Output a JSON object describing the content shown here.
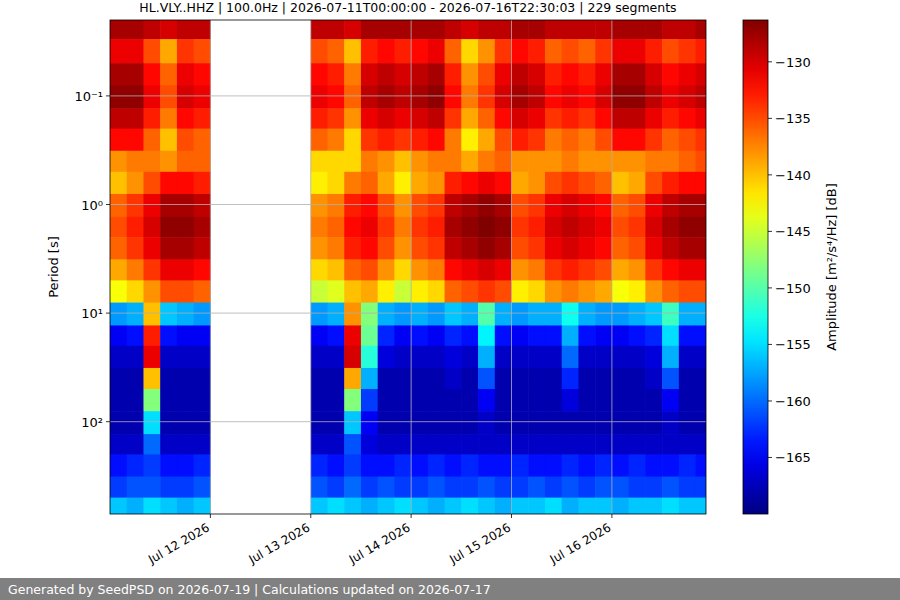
{
  "chart_data": {
    "type": "heatmap",
    "title": "HL.VLY..HHZ | 100.0Hz | 2026-07-11T00:00:00 - 2026-07-16T22:30:03 | 229 segments",
    "footer": "Generated by SeedPSD on 2026-07-19 | Calculations updated on 2026-07-17",
    "ylabel": "Period [s]",
    "log": "y",
    "grid": true,
    "xlim": [
      "2026-07-11T00:00:00",
      "2026-07-16T22:30:03"
    ],
    "xticks": [
      {
        "value": "2026-07-12T00:00:00",
        "label": "Jul 12 2026"
      },
      {
        "value": "2026-07-13T00:00:00",
        "label": "Jul 13 2026"
      },
      {
        "value": "2026-07-14T00:00:00",
        "label": "Jul 14 2026"
      },
      {
        "value": "2026-07-15T00:00:00",
        "label": "Jul 15 2026"
      },
      {
        "value": "2026-07-16T00:00:00",
        "label": "Jul 16 2026"
      }
    ],
    "ylim": [
      0.02,
      708
    ],
    "yticks": [
      {
        "value": 0.1,
        "label": "10⁻¹"
      },
      {
        "value": 1,
        "label": "10⁰"
      },
      {
        "value": 10,
        "label": "10¹"
      },
      {
        "value": 100,
        "label": "10²"
      }
    ],
    "x_bins": [
      "2026-07-11T00:00:00",
      "2026-07-11T04:00:00",
      "2026-07-11T08:00:00",
      "2026-07-11T12:00:00",
      "2026-07-11T16:00:00",
      "2026-07-11T20:00:00",
      "2026-07-12T00:00:00",
      "2026-07-12T04:00:00",
      "2026-07-12T08:00:00",
      "2026-07-12T12:00:00",
      "2026-07-12T16:00:00",
      "2026-07-12T20:00:00",
      "2026-07-13T00:00:00",
      "2026-07-13T04:00:00",
      "2026-07-13T08:00:00",
      "2026-07-13T12:00:00",
      "2026-07-13T16:00:00",
      "2026-07-13T20:00:00",
      "2026-07-14T00:00:00",
      "2026-07-14T04:00:00",
      "2026-07-14T08:00:00",
      "2026-07-14T12:00:00",
      "2026-07-14T16:00:00",
      "2026-07-14T20:00:00",
      "2026-07-15T00:00:00",
      "2026-07-15T04:00:00",
      "2026-07-15T08:00:00",
      "2026-07-15T12:00:00",
      "2026-07-15T16:00:00",
      "2026-07-15T20:00:00",
      "2026-07-16T00:00:00",
      "2026-07-16T04:00:00",
      "2026-07-16T08:00:00",
      "2026-07-16T12:00:00",
      "2026-07-16T16:00:00",
      "2026-07-16T20:00:00",
      "2026-07-17T00:00:00"
    ],
    "y_bins": [
      0.02,
      0.03,
      0.05,
      0.08,
      0.13,
      0.2,
      0.32,
      0.5,
      0.8,
      1.3,
      2,
      3.2,
      5,
      8,
      13,
      20,
      32,
      50,
      80,
      130,
      200,
      320,
      500,
      708
    ],
    "cells": [
      [
        -128,
        -128,
        -129,
        -130,
        -129,
        -129,
        null,
        null,
        null,
        null,
        null,
        null,
        -129,
        -129,
        -130,
        -128,
        -128,
        -128,
        -128,
        -128,
        -129,
        -130,
        -129,
        -129,
        -128,
        -128,
        -129,
        -129,
        -129,
        -129,
        -128,
        -128,
        -128,
        -129,
        -129,
        -128
      ],
      [
        -131,
        -131,
        -135,
        -139,
        -134,
        -135,
        null,
        null,
        null,
        null,
        null,
        null,
        -135,
        -136,
        -140,
        -133,
        -132,
        -133,
        -132,
        -131,
        -136,
        -141,
        -138,
        -134,
        -132,
        -133,
        -136,
        -135,
        -136,
        -134,
        -131,
        -131,
        -133,
        -135,
        -134,
        -133
      ],
      [
        -128,
        -128,
        -132,
        -136,
        -131,
        -132,
        null,
        null,
        null,
        null,
        null,
        null,
        -132,
        -133,
        -137,
        -130,
        -129,
        -130,
        -129,
        -128,
        -133,
        -138,
        -135,
        -131,
        -129,
        -130,
        -133,
        -132,
        -133,
        -131,
        -128,
        -128,
        -130,
        -132,
        -131,
        -130
      ],
      [
        -127,
        -127,
        -131,
        -135,
        -130,
        -131,
        null,
        null,
        null,
        null,
        null,
        null,
        -131,
        -132,
        -136,
        -129,
        -128,
        -129,
        -128,
        -127,
        -132,
        -137,
        -134,
        -130,
        -128,
        -129,
        -132,
        -131,
        -132,
        -130,
        -127,
        -127,
        -129,
        -131,
        -130,
        -129
      ],
      [
        -129,
        -129,
        -133,
        -137,
        -132,
        -133,
        null,
        null,
        null,
        null,
        null,
        null,
        -133,
        -134,
        -138,
        -131,
        -130,
        -131,
        -130,
        -129,
        -134,
        -139,
        -136,
        -132,
        -130,
        -131,
        -134,
        -133,
        -134,
        -132,
        -129,
        -129,
        -131,
        -133,
        -132,
        -131
      ],
      [
        -132,
        -132,
        -136,
        -140,
        -135,
        -136,
        null,
        null,
        null,
        null,
        null,
        null,
        -136,
        -137,
        -141,
        -134,
        -133,
        -134,
        -133,
        -132,
        -137,
        -142,
        -139,
        -135,
        -133,
        -134,
        -137,
        -136,
        -137,
        -135,
        -132,
        -132,
        -134,
        -136,
        -135,
        -134
      ],
      [
        -138,
        -137,
        -137,
        -138,
        -136,
        -136,
        null,
        null,
        null,
        null,
        null,
        null,
        -141,
        -141,
        -141,
        -137,
        -138,
        -140,
        -138,
        -137,
        -137,
        -139,
        -137,
        -136,
        -138,
        -138,
        -138,
        -137,
        -138,
        -138,
        -138,
        -138,
        -137,
        -137,
        -136,
        -135
      ],
      [
        -140,
        -138,
        -135,
        -132,
        -132,
        -133,
        null,
        null,
        null,
        null,
        null,
        null,
        -142,
        -141,
        -137,
        -136,
        -139,
        -142,
        -139,
        -138,
        -133,
        -132,
        -131,
        -132,
        -139,
        -138,
        -135,
        -134,
        -135,
        -136,
        -140,
        -139,
        -135,
        -133,
        -132,
        -132
      ],
      [
        -136,
        -134,
        -131,
        -128,
        -128,
        -129,
        null,
        null,
        null,
        null,
        null,
        null,
        -138,
        -137,
        -133,
        -132,
        -135,
        -138,
        -135,
        -134,
        -129,
        -128,
        -127,
        -128,
        -135,
        -134,
        -131,
        -130,
        -131,
        -132,
        -136,
        -135,
        -131,
        -129,
        -128,
        -128
      ],
      [
        -135,
        -133,
        -130,
        -127,
        -127,
        -128,
        null,
        null,
        null,
        null,
        null,
        null,
        -137,
        -136,
        -132,
        -131,
        -134,
        -137,
        -134,
        -133,
        -128,
        -127,
        -126,
        -127,
        -134,
        -133,
        -130,
        -129,
        -130,
        -131,
        -135,
        -134,
        -130,
        -128,
        -127,
        -127
      ],
      [
        -136,
        -134,
        -131,
        -128,
        -128,
        -129,
        null,
        null,
        null,
        null,
        null,
        null,
        -138,
        -137,
        -133,
        -132,
        -135,
        -138,
        -135,
        -134,
        -129,
        -128,
        -127,
        -128,
        -135,
        -134,
        -131,
        -130,
        -131,
        -132,
        -136,
        -135,
        -131,
        -129,
        -128,
        -128
      ],
      [
        -139,
        -137,
        -134,
        -131,
        -131,
        -132,
        null,
        null,
        null,
        null,
        null,
        null,
        -141,
        -140,
        -136,
        -135,
        -138,
        -141,
        -138,
        -137,
        -132,
        -131,
        -130,
        -131,
        -138,
        -137,
        -134,
        -133,
        -134,
        -135,
        -139,
        -138,
        -134,
        -132,
        -131,
        -131
      ],
      [
        -143,
        -141,
        -138,
        -135,
        -135,
        -136,
        null,
        null,
        null,
        null,
        null,
        null,
        -145,
        -144,
        -140,
        -139,
        -142,
        -145,
        -142,
        -141,
        -136,
        -135,
        -134,
        -135,
        -142,
        -141,
        -138,
        -137,
        -138,
        -139,
        -143,
        -142,
        -138,
        -136,
        -135,
        -135
      ],
      [
        -158,
        -157,
        -140,
        -156,
        -157,
        -158,
        null,
        null,
        null,
        null,
        null,
        null,
        -158,
        -157,
        -138,
        -148,
        -157,
        -158,
        -157,
        -158,
        -156,
        -157,
        -150,
        -157,
        -158,
        -157,
        -157,
        -153,
        -157,
        -158,
        -158,
        -157,
        -156,
        -151,
        -157,
        -157
      ],
      [
        -165,
        -164,
        -133,
        -164,
        -165,
        -165,
        null,
        null,
        null,
        null,
        null,
        null,
        -165,
        -164,
        -131,
        -149,
        -163,
        -165,
        -164,
        -165,
        -163,
        -164,
        -154,
        -164,
        -165,
        -164,
        -164,
        -157,
        -164,
        -165,
        -165,
        -164,
        -163,
        -155,
        -164,
        -164
      ],
      [
        -167,
        -167,
        -131,
        -167,
        -167,
        -167,
        null,
        null,
        null,
        null,
        null,
        null,
        -167,
        -167,
        -130,
        -152,
        -166,
        -167,
        -167,
        -167,
        -166,
        -167,
        -157,
        -167,
        -167,
        -167,
        -167,
        -160,
        -167,
        -167,
        -167,
        -167,
        -166,
        -157,
        -167,
        -167
      ],
      [
        -168,
        -168,
        -140,
        -168,
        -168,
        -168,
        null,
        null,
        null,
        null,
        null,
        null,
        -168,
        -168,
        -139,
        -157,
        -168,
        -168,
        -168,
        -168,
        -167,
        -168,
        -161,
        -168,
        -168,
        -168,
        -168,
        -163,
        -168,
        -168,
        -168,
        -168,
        -167,
        -161,
        -168,
        -168
      ],
      [
        -168,
        -168,
        -148,
        -168,
        -168,
        -168,
        null,
        null,
        null,
        null,
        null,
        null,
        -168,
        -168,
        -148,
        -162,
        -168,
        -168,
        -168,
        -168,
        -168,
        -168,
        -165,
        -168,
        -168,
        -168,
        -168,
        -166,
        -168,
        -168,
        -168,
        -168,
        -168,
        -165,
        -168,
        -168
      ],
      [
        -168,
        -168,
        -155,
        -168,
        -168,
        -168,
        null,
        null,
        null,
        null,
        null,
        null,
        -168,
        -168,
        -156,
        -165,
        -168,
        -168,
        -168,
        -168,
        -168,
        -168,
        -167,
        -168,
        -168,
        -168,
        -168,
        -168,
        -168,
        -168,
        -168,
        -168,
        -168,
        -167,
        -168,
        -168
      ],
      [
        -167,
        -167,
        -160,
        -167,
        -167,
        -167,
        null,
        null,
        null,
        null,
        null,
        null,
        -167,
        -167,
        -161,
        -166,
        -167,
        -167,
        -167,
        -167,
        -167,
        -167,
        -167,
        -167,
        -167,
        -167,
        -167,
        -167,
        -167,
        -167,
        -167,
        -167,
        -167,
        -167,
        -167,
        -167
      ],
      [
        -164,
        -163,
        -162,
        -164,
        -164,
        -163,
        null,
        null,
        null,
        null,
        null,
        null,
        -163,
        -164,
        -162,
        -164,
        -164,
        -163,
        -164,
        -163,
        -164,
        -163,
        -164,
        -164,
        -163,
        -164,
        -164,
        -163,
        -164,
        -163,
        -164,
        -163,
        -164,
        -164,
        -163,
        -164
      ],
      [
        -162,
        -161,
        -161,
        -162,
        -162,
        -161,
        null,
        null,
        null,
        null,
        null,
        null,
        -161,
        -162,
        -160,
        -162,
        -161,
        -162,
        -162,
        -161,
        -162,
        -162,
        -161,
        -162,
        -162,
        -161,
        -162,
        -161,
        -162,
        -161,
        -161,
        -162,
        -162,
        -161,
        -162,
        -162
      ],
      [
        -156,
        -157,
        -155,
        -156,
        -157,
        -156,
        null,
        null,
        null,
        null,
        null,
        null,
        -156,
        -155,
        -156,
        -157,
        -156,
        -155,
        -156,
        -157,
        -156,
        -155,
        -156,
        -157,
        -156,
        -156,
        -155,
        -157,
        -156,
        -156,
        -157,
        -156,
        -156,
        -155,
        -156,
        -156
      ]
    ],
    "colorbar": {
      "label": "Amplitude [m²/s⁴/Hz] [dB]",
      "lim": [
        -170,
        -126.3
      ],
      "ticks": [
        {
          "value": -130,
          "label": "−130"
        },
        {
          "value": -135,
          "label": "−135"
        },
        {
          "value": -140,
          "label": "−140"
        },
        {
          "value": -145,
          "label": "−145"
        },
        {
          "value": -150,
          "label": "−150"
        },
        {
          "value": -155,
          "label": "−155"
        },
        {
          "value": -160,
          "label": "−160"
        },
        {
          "value": -165,
          "label": "−165"
        }
      ]
    }
  }
}
